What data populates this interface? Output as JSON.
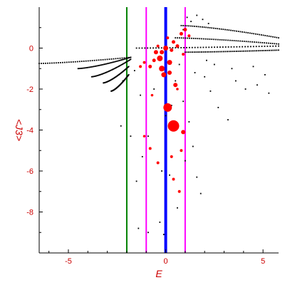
{
  "chart_data": {
    "type": "scatter",
    "title": "",
    "xlabel": "E",
    "ylabel": "<J3>",
    "xlim": [
      -6.5,
      5.8
    ],
    "ylim": [
      -10.0,
      2.0
    ],
    "x_ticks": [
      -5,
      0,
      5
    ],
    "y_ticks": [
      0,
      -2,
      -4,
      -6,
      -8
    ],
    "x_tick_labels": [
      "-5",
      "0",
      "5"
    ],
    "y_tick_labels": [
      "0",
      "-2",
      "-4",
      "-6",
      "-8"
    ],
    "grid": false,
    "vertical_lines": [
      {
        "x": -2.0,
        "color": "#008000",
        "width": 2
      },
      {
        "x": -1.0,
        "color": "#ff00ff",
        "width": 2
      },
      {
        "x": 0.0,
        "color": "#0000ff",
        "width": 4
      },
      {
        "x": 1.0,
        "color": "#ff00ff",
        "width": 2
      }
    ],
    "background_points": {
      "color": "#000000",
      "branches": [
        {
          "x_range": [
            -6.5,
            -1.8
          ],
          "y_start": -0.75,
          "y_end": -0.45
        },
        {
          "x_range": [
            -4.5,
            -1.8
          ],
          "y_start": -1.0,
          "y_end": -0.45
        },
        {
          "x_range": [
            -3.8,
            -1.8
          ],
          "y_start": -1.4,
          "y_end": -0.55
        },
        {
          "x_range": [
            -3.2,
            -1.9
          ],
          "y_start": -1.7,
          "y_end": -0.9
        },
        {
          "x_range": [
            -2.8,
            -1.9
          ],
          "y_start": -2.1,
          "y_end": -1.3
        }
      ],
      "upper_band": [
        {
          "x_range": [
            -1.5,
            5.8
          ],
          "y_start": 0.0,
          "y_end": 0.1
        },
        {
          "x_range": [
            0.5,
            5.8
          ],
          "y_start": 0.5,
          "y_end": 0.2
        },
        {
          "x_range": [
            0.8,
            5.8
          ],
          "y_start": 1.1,
          "y_end": 0.5
        },
        {
          "x_range": [
            1.0,
            5.8
          ],
          "y_start": -0.2,
          "y_end": -0.1
        }
      ],
      "scattered": [
        [
          -2.3,
          -3.8
        ],
        [
          -2.2,
          -1.6
        ],
        [
          -1.6,
          -1.1
        ],
        [
          -1.3,
          -2.3
        ],
        [
          -1.8,
          -4.3
        ],
        [
          -1.5,
          -6.5
        ],
        [
          -1.4,
          -8.8
        ],
        [
          -0.9,
          -9.0
        ],
        [
          -0.9,
          -4.3
        ],
        [
          -1.2,
          -5.3
        ],
        [
          -0.2,
          -6.0
        ],
        [
          -0.1,
          -9.1
        ],
        [
          0.2,
          -6.2
        ],
        [
          0.3,
          -2.8
        ],
        [
          0.5,
          -1.6
        ],
        [
          0.9,
          -2.6
        ],
        [
          1.2,
          -3.6
        ],
        [
          1.4,
          -4.8
        ],
        [
          1.6,
          -6.3
        ],
        [
          1.8,
          -7.1
        ],
        [
          2.0,
          -1.4
        ],
        [
          2.3,
          -2.1
        ],
        [
          2.7,
          -2.9
        ],
        [
          3.2,
          -3.5
        ],
        [
          3.6,
          -1.6
        ],
        [
          4.1,
          -2.0
        ],
        [
          4.7,
          -1.8
        ],
        [
          5.1,
          -1.3
        ],
        [
          5.3,
          -2.2
        ],
        [
          2.5,
          -0.8
        ],
        [
          3.4,
          -1.0
        ],
        [
          4.5,
          -0.9
        ],
        [
          1.5,
          -1.2
        ],
        [
          2.1,
          -0.6
        ],
        [
          0.7,
          -0.8
        ],
        [
          -0.6,
          -2.0
        ],
        [
          0.0,
          -3.3
        ],
        [
          1.0,
          -5.5
        ],
        [
          0.6,
          -7.8
        ],
        [
          -0.3,
          -8.5
        ],
        [
          1.9,
          1.4
        ],
        [
          2.2,
          1.2
        ],
        [
          1.6,
          1.6
        ],
        [
          1.3,
          1.3
        ],
        [
          0.9,
          0.9
        ],
        [
          1.1,
          1.5
        ]
      ]
    },
    "highlight_points": {
      "color": "#ff0000",
      "points": [
        {
          "x": 0.4,
          "y": -3.8,
          "size": 8
        },
        {
          "x": 0.1,
          "y": -2.9,
          "size": 6
        },
        {
          "x": -0.3,
          "y": -0.5,
          "size": 4
        },
        {
          "x": -0.2,
          "y": -1.0,
          "size": 4
        },
        {
          "x": 0.0,
          "y": 0.0,
          "size": 3.5
        },
        {
          "x": -0.1,
          "y": -1.3,
          "size": 3.5
        },
        {
          "x": 0.2,
          "y": -0.7,
          "size": 3.5
        },
        {
          "x": 0.2,
          "y": -1.2,
          "size": 3
        },
        {
          "x": 0.5,
          "y": -1.8,
          "size": 3
        },
        {
          "x": 0.9,
          "y": -4.1,
          "size": 3
        },
        {
          "x": -0.5,
          "y": -0.2,
          "size": 3
        },
        {
          "x": -0.6,
          "y": -0.6,
          "size": 2.5
        },
        {
          "x": -0.8,
          "y": -0.9,
          "size": 2.5
        },
        {
          "x": 0.4,
          "y": 0.3,
          "size": 2.5
        },
        {
          "x": 0.6,
          "y": 0.1,
          "size": 2.5
        },
        {
          "x": 0.8,
          "y": 0.7,
          "size": 2.5
        },
        {
          "x": 1.0,
          "y": 0.9,
          "size": 2.5
        },
        {
          "x": 1.2,
          "y": 0.6,
          "size": 2
        },
        {
          "x": 0.9,
          "y": -0.3,
          "size": 2
        },
        {
          "x": 0.3,
          "y": -0.1,
          "size": 2.5
        },
        {
          "x": -0.4,
          "y": 0.1,
          "size": 2
        },
        {
          "x": -1.1,
          "y": -0.7,
          "size": 2
        },
        {
          "x": -1.3,
          "y": -0.9,
          "size": 2
        },
        {
          "x": -0.8,
          "y": -4.9,
          "size": 2
        },
        {
          "x": 0.3,
          "y": -5.3,
          "size": 2
        },
        {
          "x": -0.4,
          "y": -5.6,
          "size": 2
        },
        {
          "x": 0.4,
          "y": -6.4,
          "size": 2
        },
        {
          "x": 0.7,
          "y": -7.0,
          "size": 2
        },
        {
          "x": 0.8,
          "y": -5.0,
          "size": 2
        },
        {
          "x": -1.1,
          "y": -4.3,
          "size": 1.8
        },
        {
          "x": -0.7,
          "y": -2.3,
          "size": 1.8
        },
        {
          "x": 0.1,
          "y": 0.5,
          "size": 2
        },
        {
          "x": 0.6,
          "y": -2.0,
          "size": 1.8
        },
        {
          "x": -0.2,
          "y": -0.2,
          "size": 3
        }
      ]
    }
  }
}
